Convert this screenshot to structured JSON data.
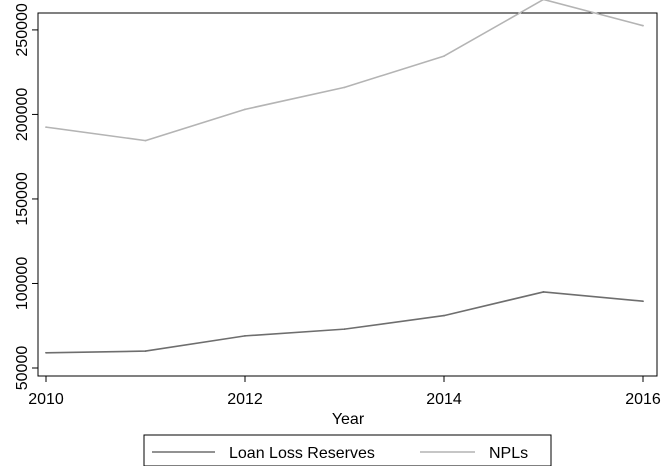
{
  "chart_data": {
    "type": "line",
    "title": "",
    "xlabel": "Year",
    "ylabel": "",
    "x": [
      2010,
      2011,
      2012,
      2013,
      2014,
      2015,
      2016
    ],
    "xticks": [
      2010,
      2012,
      2014,
      2016
    ],
    "yticks": [
      50000,
      100000,
      150000,
      200000,
      250000
    ],
    "xlim": [
      2010,
      2016
    ],
    "ylim": [
      50000,
      260000
    ],
    "grid": false,
    "legend_position": "bottom",
    "series": [
      {
        "name": "Loan Loss Reserves",
        "color": "#6e6e6e",
        "values": [
          59000,
          60000,
          69000,
          73000,
          81000,
          95000,
          89500
        ]
      },
      {
        "name": "NPLs",
        "color": "#b4b4b4",
        "values": [
          192500,
          184500,
          203000,
          216000,
          234500,
          268000,
          252500
        ]
      }
    ]
  }
}
